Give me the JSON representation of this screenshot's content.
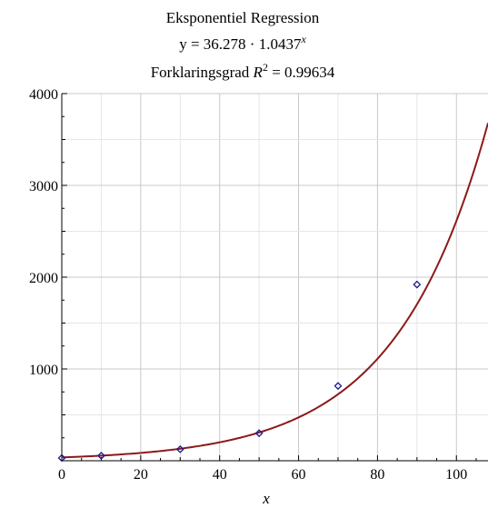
{
  "chart_data": {
    "type": "scatter",
    "title": "Eksponentiel Regression",
    "subtitle_lines": [
      {
        "prefix": "y = 36.278 · 1.0437",
        "sup": "x"
      },
      {
        "prefix": "Forklaringsgrad ",
        "var": "R",
        "sup": "2",
        "suffix": " = 0.99634"
      }
    ],
    "xlabel": "x",
    "ylabel": "",
    "xlim": [
      0,
      108
    ],
    "ylim": [
      0,
      4000
    ],
    "x_ticks": [
      0,
      20,
      40,
      60,
      80,
      100
    ],
    "y_ticks": [
      1000,
      2000,
      3000,
      4000
    ],
    "grid": true,
    "points": [
      {
        "x": 0,
        "y": 30
      },
      {
        "x": 10,
        "y": 55
      },
      {
        "x": 30,
        "y": 125
      },
      {
        "x": 50,
        "y": 300
      },
      {
        "x": 70,
        "y": 815
      },
      {
        "x": 90,
        "y": 1920
      }
    ],
    "fit": {
      "a": 36.278,
      "b": 1.0437
    },
    "colors": {
      "curve": "#8b1a1a",
      "points": "#1a1a8b",
      "grid": "#c8c8c8",
      "axis": "#000000"
    }
  }
}
